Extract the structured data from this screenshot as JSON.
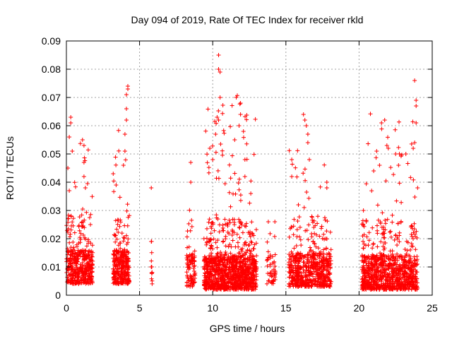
{
  "chart_data": {
    "type": "scatter",
    "title": "Day 094 of 2019, Rate Of TEC Index for receiver rkld",
    "xlabel": "GPS time / hours",
    "ylabel": "ROTI / TECUs",
    "xlim": [
      0,
      25
    ],
    "ylim": [
      0,
      0.09
    ],
    "grid": true,
    "marker": "+",
    "colors": {
      "points": "#ff0000",
      "grid": "#a0a0a0",
      "axis": "#000000"
    },
    "x_ticks": [
      {
        "value": 0,
        "label": "0"
      },
      {
        "value": 5,
        "label": "5"
      },
      {
        "value": 10,
        "label": "10"
      },
      {
        "value": 15,
        "label": "15"
      },
      {
        "value": 20,
        "label": "20"
      },
      {
        "value": 25,
        "label": "25"
      }
    ],
    "y_ticks": [
      {
        "value": 0,
        "label": "0"
      },
      {
        "value": 0.01,
        "label": "0.01"
      },
      {
        "value": 0.02,
        "label": "0.02"
      },
      {
        "value": 0.03,
        "label": "0.03"
      },
      {
        "value": 0.04,
        "label": "0.04"
      },
      {
        "value": 0.05,
        "label": "0.05"
      },
      {
        "value": 0.06,
        "label": "0.06"
      },
      {
        "value": 0.07,
        "label": "0.07"
      },
      {
        "value": 0.08,
        "label": "0.08"
      },
      {
        "value": 0.09,
        "label": "0.09"
      }
    ],
    "series": [
      {
        "name": "ROTI",
        "clusters": [
          {
            "x_start": 0.0,
            "x_end": 1.8,
            "y_min": 0.004,
            "y_max": 0.063,
            "n": 420
          },
          {
            "x_start": 3.2,
            "x_end": 4.3,
            "y_min": 0.004,
            "y_max": 0.074,
            "n": 300
          },
          {
            "x_start": 5.8,
            "x_end": 5.9,
            "y_min": 0.004,
            "y_max": 0.039,
            "n": 10
          },
          {
            "x_start": 8.2,
            "x_end": 8.8,
            "y_min": 0.003,
            "y_max": 0.047,
            "n": 90
          },
          {
            "x_start": 9.4,
            "x_end": 13.0,
            "y_min": 0.002,
            "y_max": 0.085,
            "n": 1100
          },
          {
            "x_start": 13.7,
            "x_end": 14.3,
            "y_min": 0.004,
            "y_max": 0.026,
            "n": 50
          },
          {
            "x_start": 15.2,
            "x_end": 18.1,
            "y_min": 0.003,
            "y_max": 0.064,
            "n": 600
          },
          {
            "x_start": 20.2,
            "x_end": 24.0,
            "y_min": 0.002,
            "y_max": 0.076,
            "n": 900
          }
        ],
        "highlight_points": [
          [
            0.1,
            0.045
          ],
          [
            0.2,
            0.056
          ],
          [
            0.3,
            0.063
          ],
          [
            0.3,
            0.061
          ],
          [
            0.4,
            0.051
          ],
          [
            0.2,
            0.037
          ],
          [
            1.1,
            0.055
          ],
          [
            1.2,
            0.053
          ],
          [
            1.2,
            0.047
          ],
          [
            1.2,
            0.042
          ],
          [
            1.3,
            0.038
          ],
          [
            3.2,
            0.043
          ],
          [
            3.4,
            0.039
          ],
          [
            3.9,
            0.046
          ],
          [
            4.0,
            0.057
          ],
          [
            4.1,
            0.062
          ],
          [
            4.1,
            0.066
          ],
          [
            4.1,
            0.071
          ],
          [
            4.2,
            0.074
          ],
          [
            4.2,
            0.073
          ],
          [
            4.0,
            0.051
          ],
          [
            5.8,
            0.038
          ],
          [
            5.8,
            0.019
          ],
          [
            5.8,
            0.01
          ],
          [
            8.5,
            0.047
          ],
          [
            8.5,
            0.04
          ],
          [
            9.8,
            0.052
          ],
          [
            10.0,
            0.048
          ],
          [
            10.2,
            0.057
          ],
          [
            10.3,
            0.063
          ],
          [
            10.4,
            0.062
          ],
          [
            10.4,
            0.085
          ],
          [
            10.4,
            0.08
          ],
          [
            10.5,
            0.079
          ],
          [
            10.5,
            0.07
          ],
          [
            11.5,
            0.055
          ],
          [
            11.8,
            0.06
          ],
          [
            11.9,
            0.068
          ],
          [
            11.9,
            0.064
          ],
          [
            12.1,
            0.058
          ],
          [
            12.2,
            0.048
          ],
          [
            12.6,
            0.036
          ],
          [
            12.2,
            0.042
          ],
          [
            13.8,
            0.026
          ],
          [
            15.4,
            0.048
          ],
          [
            15.4,
            0.042
          ],
          [
            16.2,
            0.064
          ],
          [
            16.3,
            0.062
          ],
          [
            16.4,
            0.06
          ],
          [
            16.5,
            0.057
          ],
          [
            16.5,
            0.054
          ],
          [
            16.6,
            0.048
          ],
          [
            17.8,
            0.04
          ],
          [
            17.8,
            0.038
          ],
          [
            20.3,
            0.03
          ],
          [
            21.0,
            0.044
          ],
          [
            21.2,
            0.051
          ],
          [
            21.4,
            0.046
          ],
          [
            21.9,
            0.053
          ],
          [
            22.0,
            0.052
          ],
          [
            22.5,
            0.05
          ],
          [
            22.7,
            0.046
          ],
          [
            23.2,
            0.05
          ],
          [
            23.7,
            0.052
          ],
          [
            23.8,
            0.076
          ],
          [
            23.9,
            0.069
          ],
          [
            23.9,
            0.067
          ],
          [
            23.9,
            0.061
          ],
          [
            23.8,
            0.054
          ],
          [
            24.0,
            0.038
          ]
        ]
      }
    ]
  }
}
